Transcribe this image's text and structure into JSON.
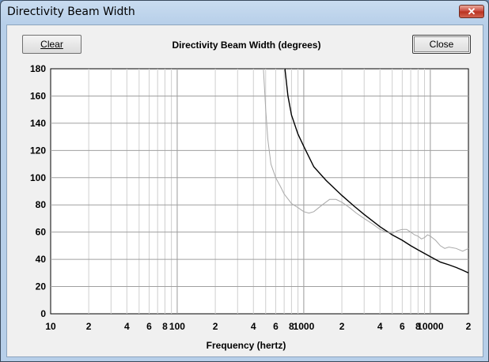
{
  "window": {
    "title": "Directivity Beam Width",
    "close_glyph": "✕"
  },
  "buttons": {
    "clear": "Clear",
    "close": "Close"
  },
  "chart_data": {
    "type": "line",
    "title": "Directivity Beam Width (degrees)",
    "xlabel": "Frequency (hertz)",
    "ylabel": "",
    "xscale": "log",
    "xlim": [
      10,
      20000
    ],
    "ylim": [
      0,
      180
    ],
    "grid": true,
    "y_ticks": [
      "0",
      "20",
      "40",
      "60",
      "80",
      "100",
      "120",
      "140",
      "160",
      "180"
    ],
    "x_tick_labels": [
      {
        "x": 10,
        "label": "10"
      },
      {
        "x": 20,
        "label": "2"
      },
      {
        "x": 40,
        "label": "4"
      },
      {
        "x": 60,
        "label": "6"
      },
      {
        "x": 80,
        "label": "8"
      },
      {
        "x": 100,
        "label": "100"
      },
      {
        "x": 200,
        "label": "2"
      },
      {
        "x": 400,
        "label": "4"
      },
      {
        "x": 600,
        "label": "6"
      },
      {
        "x": 800,
        "label": "8"
      },
      {
        "x": 1000,
        "label": "1000"
      },
      {
        "x": 2000,
        "label": "2"
      },
      {
        "x": 4000,
        "label": "4"
      },
      {
        "x": 6000,
        "label": "6"
      },
      {
        "x": 8000,
        "label": "8"
      },
      {
        "x": 10000,
        "label": "10000"
      },
      {
        "x": 20000,
        "label": "2"
      }
    ],
    "series": [
      {
        "color": "#000000",
        "x": [
          710,
          750,
          800,
          900,
          1000,
          1200,
          1500,
          2000,
          2500,
          3000,
          4000,
          5000,
          6000,
          7000,
          8000,
          10000,
          12000,
          14000,
          16000,
          18000,
          20000
        ],
        "y": [
          180,
          160,
          146,
          132,
          123,
          108,
          98,
          87,
          79,
          73,
          64,
          58,
          54,
          50,
          47,
          42,
          38,
          36,
          34,
          32,
          30
        ]
      },
      {
        "color": "#a8a8a8",
        "x": [
          480,
          500,
          520,
          550,
          600,
          650,
          700,
          800,
          900,
          1000,
          1100,
          1200,
          1400,
          1600,
          1800,
          2000,
          2300,
          2600,
          3000,
          3500,
          4000,
          4500,
          5000,
          5500,
          6000,
          6500,
          7000,
          7500,
          8000,
          8500,
          9000,
          9500,
          10000,
          11000,
          12000,
          13000,
          14000,
          16000,
          18000,
          20000
        ],
        "y": [
          180,
          150,
          128,
          110,
          100,
          94,
          88,
          81,
          78,
          75,
          74,
          75,
          80,
          84,
          84,
          82,
          78,
          74,
          70,
          66,
          62,
          60,
          59,
          61,
          62,
          62,
          60,
          58,
          57,
          55,
          56,
          58,
          57,
          54,
          50,
          48,
          49,
          48,
          46,
          48
        ]
      }
    ]
  }
}
